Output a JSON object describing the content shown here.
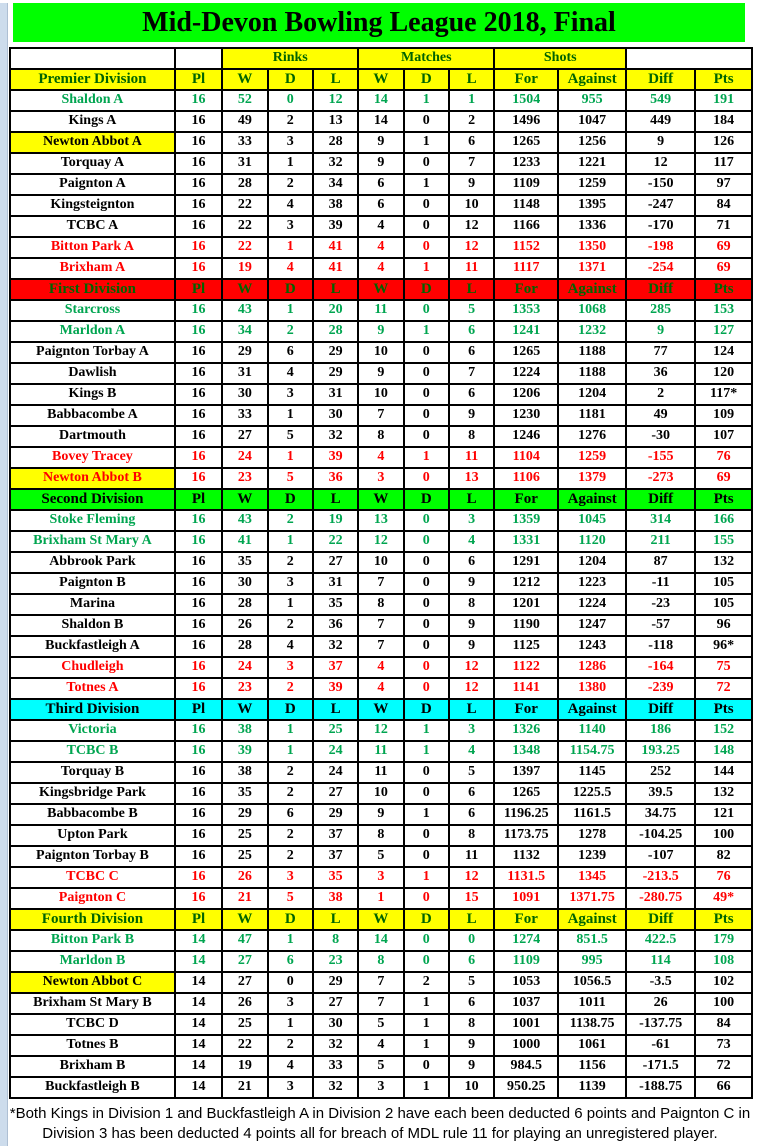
{
  "title": "Mid-Devon Bowling League 2018, Final",
  "colors": {
    "title_bg": "#00FF00",
    "group_header_bg": "#FFFF00",
    "group_header_text": "#006400",
    "promoted": "#00A550",
    "neutral": "#000000",
    "relegated": "#FF0000",
    "highlight": "#FFFF00"
  },
  "group_headers": {
    "rinks": "Rinks",
    "matches": "Matches",
    "shots": "Shots"
  },
  "stat_columns": [
    "Pl",
    "W",
    "D",
    "L",
    "W",
    "D",
    "L",
    "For",
    "Against",
    "Diff",
    "Pts"
  ],
  "divisions": [
    {
      "name": "Premier Division",
      "bg": "#FFFF00",
      "fg": "#006400",
      "teams": [
        {
          "name": "Shaldon A",
          "status": "promoted",
          "highlight": false,
          "values": [
            "16",
            "52",
            "0",
            "12",
            "14",
            "1",
            "1",
            "1504",
            "955",
            "549",
            "191"
          ]
        },
        {
          "name": "Kings A",
          "status": "neutral",
          "highlight": false,
          "values": [
            "16",
            "49",
            "2",
            "13",
            "14",
            "0",
            "2",
            "1496",
            "1047",
            "449",
            "184"
          ]
        },
        {
          "name": "Newton Abbot A",
          "status": "neutral",
          "highlight": true,
          "values": [
            "16",
            "33",
            "3",
            "28",
            "9",
            "1",
            "6",
            "1265",
            "1256",
            "9",
            "126"
          ]
        },
        {
          "name": "Torquay A",
          "status": "neutral",
          "highlight": false,
          "values": [
            "16",
            "31",
            "1",
            "32",
            "9",
            "0",
            "7",
            "1233",
            "1221",
            "12",
            "117"
          ]
        },
        {
          "name": "Paignton A",
          "status": "neutral",
          "highlight": false,
          "values": [
            "16",
            "28",
            "2",
            "34",
            "6",
            "1",
            "9",
            "1109",
            "1259",
            "-150",
            "97"
          ]
        },
        {
          "name": "Kingsteignton",
          "status": "neutral",
          "highlight": false,
          "values": [
            "16",
            "22",
            "4",
            "38",
            "6",
            "0",
            "10",
            "1148",
            "1395",
            "-247",
            "84"
          ]
        },
        {
          "name": "TCBC A",
          "status": "neutral",
          "highlight": false,
          "values": [
            "16",
            "22",
            "3",
            "39",
            "4",
            "0",
            "12",
            "1166",
            "1336",
            "-170",
            "71"
          ]
        },
        {
          "name": "Bitton Park A",
          "status": "relegated",
          "highlight": false,
          "values": [
            "16",
            "22",
            "1",
            "41",
            "4",
            "0",
            "12",
            "1152",
            "1350",
            "-198",
            "69"
          ]
        },
        {
          "name": "Brixham A",
          "status": "relegated",
          "highlight": false,
          "values": [
            "16",
            "19",
            "4",
            "41",
            "4",
            "1",
            "11",
            "1117",
            "1371",
            "-254",
            "69"
          ]
        }
      ]
    },
    {
      "name": "First Division",
      "bg": "#FF0000",
      "fg": "#006400",
      "teams": [
        {
          "name": "Starcross",
          "status": "promoted",
          "highlight": false,
          "values": [
            "16",
            "43",
            "1",
            "20",
            "11",
            "0",
            "5",
            "1353",
            "1068",
            "285",
            "153"
          ]
        },
        {
          "name": "Marldon A",
          "status": "promoted",
          "highlight": false,
          "values": [
            "16",
            "34",
            "2",
            "28",
            "9",
            "1",
            "6",
            "1241",
            "1232",
            "9",
            "127"
          ]
        },
        {
          "name": "Paignton Torbay A",
          "status": "neutral",
          "highlight": false,
          "values": [
            "16",
            "29",
            "6",
            "29",
            "10",
            "0",
            "6",
            "1265",
            "1188",
            "77",
            "124"
          ]
        },
        {
          "name": "Dawlish",
          "status": "neutral",
          "highlight": false,
          "values": [
            "16",
            "31",
            "4",
            "29",
            "9",
            "0",
            "7",
            "1224",
            "1188",
            "36",
            "120"
          ]
        },
        {
          "name": "Kings B",
          "status": "neutral",
          "highlight": false,
          "values": [
            "16",
            "30",
            "3",
            "31",
            "10",
            "0",
            "6",
            "1206",
            "1204",
            "2",
            "117*"
          ],
          "small": [
            10
          ]
        },
        {
          "name": "Babbacombe A",
          "status": "neutral",
          "highlight": false,
          "values": [
            "16",
            "33",
            "1",
            "30",
            "7",
            "0",
            "9",
            "1230",
            "1181",
            "49",
            "109"
          ]
        },
        {
          "name": "Dartmouth",
          "status": "neutral",
          "highlight": false,
          "values": [
            "16",
            "27",
            "5",
            "32",
            "8",
            "0",
            "8",
            "1246",
            "1276",
            "-30",
            "107"
          ]
        },
        {
          "name": "Bovey Tracey",
          "status": "relegated",
          "highlight": false,
          "values": [
            "16",
            "24",
            "1",
            "39",
            "4",
            "1",
            "11",
            "1104",
            "1259",
            "-155",
            "76"
          ]
        },
        {
          "name": "Newton Abbot B",
          "status": "relegated",
          "highlight": true,
          "values": [
            "16",
            "23",
            "5",
            "36",
            "3",
            "0",
            "13",
            "1106",
            "1379",
            "-273",
            "69"
          ]
        }
      ]
    },
    {
      "name": "Second Division",
      "bg": "#00FF00",
      "fg": "#000000",
      "teams": [
        {
          "name": "Stoke Fleming",
          "status": "promoted",
          "highlight": false,
          "values": [
            "16",
            "43",
            "2",
            "19",
            "13",
            "0",
            "3",
            "1359",
            "1045",
            "314",
            "166"
          ]
        },
        {
          "name": "Brixham St Mary A",
          "status": "promoted",
          "highlight": false,
          "values": [
            "16",
            "41",
            "1",
            "22",
            "12",
            "0",
            "4",
            "1331",
            "1120",
            "211",
            "155"
          ]
        },
        {
          "name": "Abbrook Park",
          "status": "neutral",
          "highlight": false,
          "values": [
            "16",
            "35",
            "2",
            "27",
            "10",
            "0",
            "6",
            "1291",
            "1204",
            "87",
            "132"
          ]
        },
        {
          "name": "Paignton B",
          "status": "neutral",
          "highlight": false,
          "values": [
            "16",
            "30",
            "3",
            "31",
            "7",
            "0",
            "9",
            "1212",
            "1223",
            "-11",
            "105"
          ]
        },
        {
          "name": "Marina",
          "status": "neutral",
          "highlight": false,
          "values": [
            "16",
            "28",
            "1",
            "35",
            "8",
            "0",
            "8",
            "1201",
            "1224",
            "-23",
            "105"
          ]
        },
        {
          "name": "Shaldon B",
          "status": "neutral",
          "highlight": false,
          "values": [
            "16",
            "26",
            "2",
            "36",
            "7",
            "0",
            "9",
            "1190",
            "1247",
            "-57",
            "96"
          ]
        },
        {
          "name": "Buckfastleigh A",
          "status": "neutral",
          "highlight": false,
          "values": [
            "16",
            "28",
            "4",
            "32",
            "7",
            "0",
            "9",
            "1125",
            "1243",
            "-118",
            "96*"
          ],
          "small": [
            10
          ]
        },
        {
          "name": "Chudleigh",
          "status": "relegated",
          "highlight": false,
          "values": [
            "16",
            "24",
            "3",
            "37",
            "4",
            "0",
            "12",
            "1122",
            "1286",
            "-164",
            "75"
          ]
        },
        {
          "name": "Totnes A",
          "status": "relegated",
          "highlight": false,
          "values": [
            "16",
            "23",
            "2",
            "39",
            "4",
            "0",
            "12",
            "1141",
            "1380",
            "-239",
            "72"
          ]
        }
      ]
    },
    {
      "name": "Third Division",
      "bg": "#00FFFF",
      "fg": "#000000",
      "teams": [
        {
          "name": "Victoria",
          "status": "promoted",
          "highlight": false,
          "values": [
            "16",
            "38",
            "1",
            "25",
            "12",
            "1",
            "3",
            "1326",
            "1140",
            "186",
            "152"
          ]
        },
        {
          "name": "TCBC B",
          "status": "promoted",
          "highlight": false,
          "values": [
            "16",
            "39",
            "1",
            "24",
            "11",
            "1",
            "4",
            "1348",
            "1154.75",
            "193.25",
            "148"
          ]
        },
        {
          "name": "Torquay B",
          "status": "neutral",
          "highlight": false,
          "values": [
            "16",
            "38",
            "2",
            "24",
            "11",
            "0",
            "5",
            "1397",
            "1145",
            "252",
            "144"
          ]
        },
        {
          "name": "Kingsbridge Park",
          "status": "neutral",
          "highlight": false,
          "values": [
            "16",
            "35",
            "2",
            "27",
            "10",
            "0",
            "6",
            "1265",
            "1225.5",
            "39.5",
            "132"
          ]
        },
        {
          "name": "Babbacombe B",
          "status": "neutral",
          "highlight": false,
          "values": [
            "16",
            "29",
            "6",
            "29",
            "9",
            "1",
            "6",
            "1196.25",
            "1161.5",
            "34.75",
            "121"
          ]
        },
        {
          "name": "Upton Park",
          "status": "neutral",
          "highlight": false,
          "values": [
            "16",
            "25",
            "2",
            "37",
            "8",
            "0",
            "8",
            "1173.75",
            "1278",
            "-104.25",
            "100"
          ],
          "small": [
            9
          ]
        },
        {
          "name": "Paignton Torbay B",
          "status": "neutral",
          "highlight": false,
          "values": [
            "16",
            "25",
            "2",
            "37",
            "5",
            "0",
            "11",
            "1132",
            "1239",
            "-107",
            "82"
          ]
        },
        {
          "name": "TCBC C",
          "status": "relegated",
          "highlight": false,
          "values": [
            "16",
            "26",
            "3",
            "35",
            "3",
            "1",
            "12",
            "1131.5",
            "1345",
            "-213.5",
            "76"
          ]
        },
        {
          "name": "Paignton C",
          "status": "relegated",
          "highlight": false,
          "values": [
            "16",
            "21",
            "5",
            "38",
            "1",
            "0",
            "15",
            "1091",
            "1371.75",
            "-280.75",
            "49*"
          ],
          "small": [
            10
          ]
        }
      ]
    },
    {
      "name": "Fourth Division",
      "bg": "#FFFF00",
      "fg": "#006400",
      "teams": [
        {
          "name": "Bitton Park B",
          "status": "promoted",
          "highlight": false,
          "values": [
            "14",
            "47",
            "1",
            "8",
            "14",
            "0",
            "0",
            "1274",
            "851.5",
            "422.5",
            "179"
          ]
        },
        {
          "name": "Marldon B",
          "status": "promoted",
          "highlight": false,
          "values": [
            "14",
            "27",
            "6",
            "23",
            "8",
            "0",
            "6",
            "1109",
            "995",
            "114",
            "108"
          ]
        },
        {
          "name": "Newton Abbot C",
          "status": "neutral",
          "highlight": true,
          "values": [
            "14",
            "27",
            "0",
            "29",
            "7",
            "2",
            "5",
            "1053",
            "1056.5",
            "-3.5",
            "102"
          ]
        },
        {
          "name": "Brixham St Mary B",
          "status": "neutral",
          "highlight": false,
          "values": [
            "14",
            "26",
            "3",
            "27",
            "7",
            "1",
            "6",
            "1037",
            "1011",
            "26",
            "100"
          ]
        },
        {
          "name": "TCBC D",
          "status": "neutral",
          "highlight": false,
          "values": [
            "14",
            "25",
            "1",
            "30",
            "5",
            "1",
            "8",
            "1001",
            "1138.75",
            "-137.75",
            "84"
          ]
        },
        {
          "name": "Totnes B",
          "status": "neutral",
          "highlight": false,
          "values": [
            "14",
            "22",
            "2",
            "32",
            "4",
            "1",
            "9",
            "1000",
            "1061",
            "-61",
            "73"
          ]
        },
        {
          "name": "Brixham B",
          "status": "neutral",
          "highlight": false,
          "values": [
            "14",
            "19",
            "4",
            "33",
            "5",
            "0",
            "9",
            "984.5",
            "1156",
            "-171.5",
            "72"
          ]
        },
        {
          "name": "Buckfastleigh B",
          "status": "neutral",
          "highlight": false,
          "values": [
            "14",
            "21",
            "3",
            "32",
            "3",
            "1",
            "10",
            "950.25",
            "1139",
            "-188.75",
            "66"
          ]
        }
      ]
    }
  ],
  "footnote": "*Both Kings in Division 1 and Buckfastleigh A in Division 2 have each been deducted 6 points and Paignton C in Division 3 has been deducted 4 points all for breach of MDL rule 11 for playing an unregistered player."
}
